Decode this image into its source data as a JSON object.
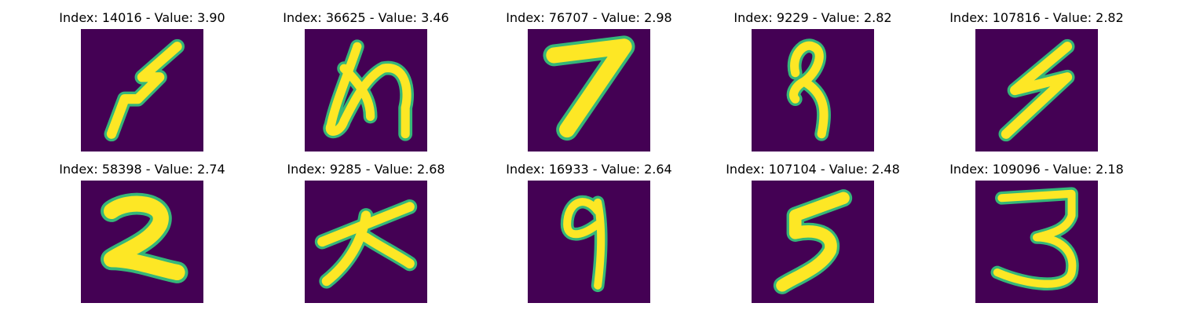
{
  "background_color": "#440154",
  "stroke_color": "#fde725",
  "edge_color": "#35b779",
  "panels": [
    {
      "title": "Index: 14016 - Value: 3.90",
      "glyph": "zigzag-5"
    },
    {
      "title": "Index: 36625 - Value: 3.46",
      "glyph": "hiragana-me"
    },
    {
      "title": "Index: 76707 - Value: 2.98",
      "glyph": "seven"
    },
    {
      "title": "Index: 9229 - Value: 2.82",
      "glyph": "loop-9"
    },
    {
      "title": "Index: 107816 - Value: 2.82",
      "glyph": "zigzag-5"
    },
    {
      "title": "Index: 58398 - Value: 2.74",
      "glyph": "two"
    },
    {
      "title": "Index: 9285 - Value: 2.68",
      "glyph": "kanji-dai"
    },
    {
      "title": "Index: 16933 - Value: 2.64",
      "glyph": "nine"
    },
    {
      "title": "Index: 107104 - Value: 2.48",
      "glyph": "five"
    },
    {
      "title": "Index: 109096 - Value: 2.18",
      "glyph": "three"
    }
  ]
}
